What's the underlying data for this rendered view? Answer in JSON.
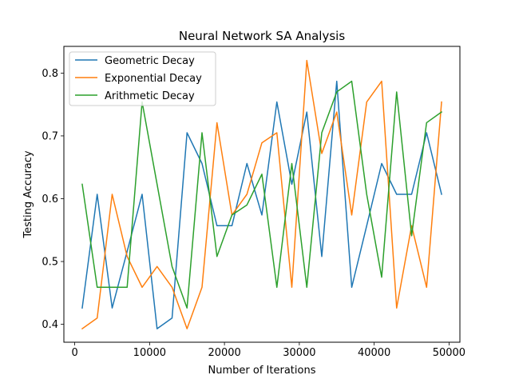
{
  "chart_data": {
    "type": "line",
    "title": "Neural Network SA Analysis",
    "xlabel": "Number of Iterations",
    "ylabel": "Testing Accuracy",
    "xlim": [
      -1450,
      51450
    ],
    "ylim": [
      0.3715,
      0.8425
    ],
    "xticks": [
      0,
      10000,
      20000,
      30000,
      40000,
      50000
    ],
    "yticks": [
      0.4,
      0.5,
      0.6,
      0.7,
      0.8
    ],
    "grid": false,
    "legend_position": "top-left",
    "x": [
      1000,
      3000,
      5000,
      7000,
      9000,
      11000,
      13000,
      15000,
      17000,
      19000,
      21000,
      23000,
      25000,
      27000,
      29000,
      31000,
      33000,
      35000,
      37000,
      39000,
      41000,
      43000,
      45000,
      47000,
      49000
    ],
    "series": [
      {
        "name": "Geometric Decay",
        "color": "#1f77b4",
        "values": [
          0.426,
          0.607,
          0.426,
          0.516,
          0.607,
          0.393,
          0.41,
          0.705,
          0.656,
          0.557,
          0.557,
          0.656,
          0.574,
          0.754,
          0.623,
          0.738,
          0.508,
          0.787,
          0.459,
          0.557,
          0.656,
          0.607,
          0.607,
          0.705,
          0.607
        ]
      },
      {
        "name": "Exponential Decay",
        "color": "#ff7f0e",
        "values": [
          0.393,
          0.41,
          0.607,
          0.508,
          0.459,
          0.492,
          0.459,
          0.393,
          0.459,
          0.721,
          0.574,
          0.607,
          0.689,
          0.705,
          0.459,
          0.82,
          0.672,
          0.738,
          0.574,
          0.754,
          0.787,
          0.426,
          0.557,
          0.459,
          0.754
        ]
      },
      {
        "name": "Arithmetic Decay",
        "color": "#2ca02c",
        "values": [
          0.623,
          0.459,
          0.459,
          0.459,
          0.754,
          0.623,
          0.492,
          0.426,
          0.705,
          0.508,
          0.574,
          0.59,
          0.639,
          0.459,
          0.656,
          0.459,
          0.705,
          0.77,
          0.787,
          0.607,
          0.475,
          0.77,
          0.541,
          0.721,
          0.738
        ]
      }
    ]
  }
}
